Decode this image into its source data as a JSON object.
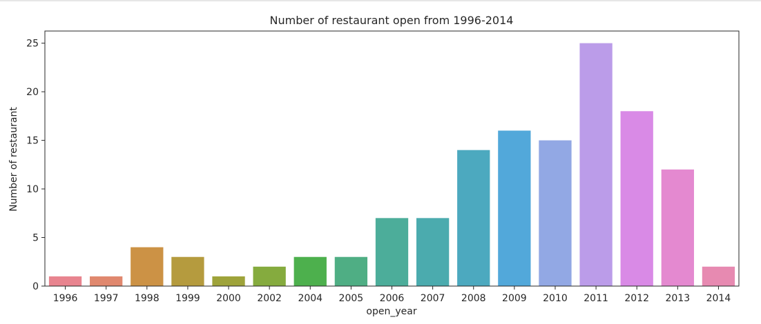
{
  "chart_data": {
    "type": "bar",
    "title": "Number of restaurant open from 1996-2014",
    "xlabel": "open_year",
    "ylabel": "Number of restaurant",
    "categories": [
      "1996",
      "1997",
      "1998",
      "1999",
      "2000",
      "2002",
      "2004",
      "2005",
      "2006",
      "2007",
      "2008",
      "2009",
      "2010",
      "2011",
      "2012",
      "2013",
      "2014"
    ],
    "values": [
      1,
      1,
      4,
      3,
      1,
      2,
      3,
      3,
      7,
      7,
      14,
      16,
      15,
      25,
      18,
      12,
      2
    ],
    "colors": [
      "#e8848f",
      "#e0886e",
      "#cc9245",
      "#b59b3e",
      "#9ea33a",
      "#85ab3e",
      "#4db04d",
      "#4fae84",
      "#4cad9a",
      "#4babae",
      "#4ca9bf",
      "#52a8da",
      "#92a8e4",
      "#bb9ce9",
      "#d98ae6",
      "#e489d0",
      "#e78ab1"
    ],
    "ylim": [
      0,
      26.25
    ],
    "yticks": [
      0,
      5,
      10,
      15,
      20,
      25
    ],
    "grid": false,
    "legend": "none"
  }
}
